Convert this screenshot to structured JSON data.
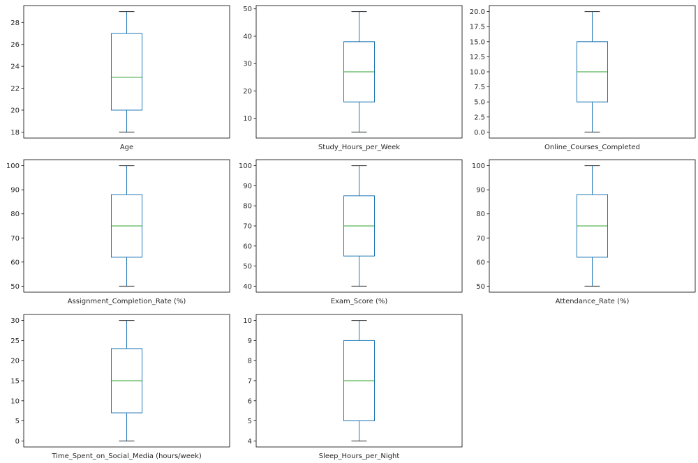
{
  "figure": {
    "background": "#ffffff",
    "grid": {
      "rows": 3,
      "cols": 3,
      "empty_cells": 1
    }
  },
  "palette": {
    "box": "#1f77b4",
    "median": "#2ca02c",
    "whisker": "#1f77b4",
    "cap": "#2b2b2b",
    "axis": "#000000",
    "tick_label": "#262626"
  },
  "chart_data": [
    {
      "type": "boxplot",
      "xlabel": "Age",
      "ylabel": "",
      "ylim": [
        17.45,
        29.55
      ],
      "yticks": [
        18,
        20,
        22,
        24,
        26,
        28
      ],
      "ytick_labels": [
        "18",
        "20",
        "22",
        "24",
        "26",
        "28"
      ],
      "stats": {
        "whisker_low": 18,
        "q1": 20,
        "median": 23,
        "q3": 27,
        "whisker_high": 29
      }
    },
    {
      "type": "boxplot",
      "xlabel": "Study_Hours_per_Week",
      "ylabel": "",
      "ylim": [
        2.8,
        51.2
      ],
      "yticks": [
        10,
        20,
        30,
        40,
        50
      ],
      "ytick_labels": [
        "10",
        "20",
        "30",
        "40",
        "50"
      ],
      "stats": {
        "whisker_low": 5,
        "q1": 16,
        "median": 27,
        "q3": 38,
        "whisker_high": 49
      }
    },
    {
      "type": "boxplot",
      "xlabel": "Online_Courses_Completed",
      "ylabel": "",
      "ylim": [
        -1,
        21
      ],
      "yticks": [
        0,
        2.5,
        5,
        7.5,
        10,
        12.5,
        15,
        17.5,
        20
      ],
      "ytick_labels": [
        "0.0",
        "2.5",
        "5.0",
        "7.5",
        "10.0",
        "12.5",
        "15.0",
        "17.5",
        "20.0"
      ],
      "stats": {
        "whisker_low": 0,
        "q1": 5,
        "median": 10,
        "q3": 15,
        "whisker_high": 20
      }
    },
    {
      "type": "boxplot",
      "xlabel": "Assignment_Completion_Rate (%)",
      "ylabel": "",
      "ylim": [
        47.5,
        102.5
      ],
      "yticks": [
        50,
        60,
        70,
        80,
        90,
        100
      ],
      "ytick_labels": [
        "50",
        "60",
        "70",
        "80",
        "90",
        "100"
      ],
      "stats": {
        "whisker_low": 50,
        "q1": 62,
        "median": 75,
        "q3": 88,
        "whisker_high": 100
      }
    },
    {
      "type": "boxplot",
      "xlabel": "Exam_Score (%)",
      "ylabel": "",
      "ylim": [
        37,
        103
      ],
      "yticks": [
        40,
        50,
        60,
        70,
        80,
        90,
        100
      ],
      "ytick_labels": [
        "40",
        "50",
        "60",
        "70",
        "80",
        "90",
        "100"
      ],
      "stats": {
        "whisker_low": 40,
        "q1": 55,
        "median": 70,
        "q3": 85,
        "whisker_high": 100
      }
    },
    {
      "type": "boxplot",
      "xlabel": "Attendance_Rate (%)",
      "ylabel": "",
      "ylim": [
        47.5,
        102.5
      ],
      "yticks": [
        50,
        60,
        70,
        80,
        90,
        100
      ],
      "ytick_labels": [
        "50",
        "60",
        "70",
        "80",
        "90",
        "100"
      ],
      "stats": {
        "whisker_low": 50,
        "q1": 62,
        "median": 75,
        "q3": 88,
        "whisker_high": 100
      }
    },
    {
      "type": "boxplot",
      "xlabel": "Time_Spent_on_Social_Media (hours/week)",
      "ylabel": "",
      "ylim": [
        -1.5,
        31.5
      ],
      "yticks": [
        0,
        5,
        10,
        15,
        20,
        25,
        30
      ],
      "ytick_labels": [
        "0",
        "5",
        "10",
        "15",
        "20",
        "25",
        "30"
      ],
      "stats": {
        "whisker_low": 0,
        "q1": 7,
        "median": 15,
        "q3": 23,
        "whisker_high": 30
      }
    },
    {
      "type": "boxplot",
      "xlabel": "Sleep_Hours_per_Night",
      "ylabel": "",
      "ylim": [
        3.7,
        10.3
      ],
      "yticks": [
        4,
        5,
        6,
        7,
        8,
        9,
        10
      ],
      "ytick_labels": [
        "4",
        "5",
        "6",
        "7",
        "8",
        "9",
        "10"
      ],
      "stats": {
        "whisker_low": 4,
        "q1": 5,
        "median": 7,
        "q3": 9,
        "whisker_high": 10
      }
    }
  ]
}
